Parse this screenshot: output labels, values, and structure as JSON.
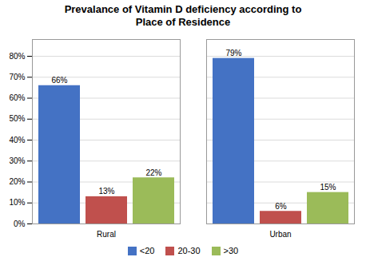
{
  "chart_data": {
    "type": "bar",
    "title": "Prevalance of Vitamin D deficiency according to\nPlace of Residence",
    "categories": [
      "Rural",
      "Urban"
    ],
    "series": [
      {
        "name": "<20",
        "color": "#4472C4",
        "values": [
          66,
          79
        ],
        "value_labels": [
          "66%",
          "79%"
        ]
      },
      {
        "name": "20-30",
        "color": "#C0504D",
        "values": [
          13,
          6
        ],
        "value_labels": [
          "13%",
          "6%"
        ]
      },
      {
        "name": ">30",
        "color": "#9BBB59",
        "values": [
          22,
          15
        ],
        "value_labels": [
          "22%",
          "15%"
        ]
      }
    ],
    "ylim": [
      0,
      88
    ],
    "yticks": [
      {
        "value": 0,
        "label": "0%"
      },
      {
        "value": 10,
        "label": "10%"
      },
      {
        "value": 20,
        "label": "20%"
      },
      {
        "value": 30,
        "label": "30%"
      },
      {
        "value": 40,
        "label": "40%"
      },
      {
        "value": 50,
        "label": "50%"
      },
      {
        "value": 60,
        "label": "60%"
      },
      {
        "value": 70,
        "label": "70%"
      },
      {
        "value": 80,
        "label": "80%"
      }
    ],
    "grid": true,
    "legend": "bottom",
    "data_labels": true
  }
}
